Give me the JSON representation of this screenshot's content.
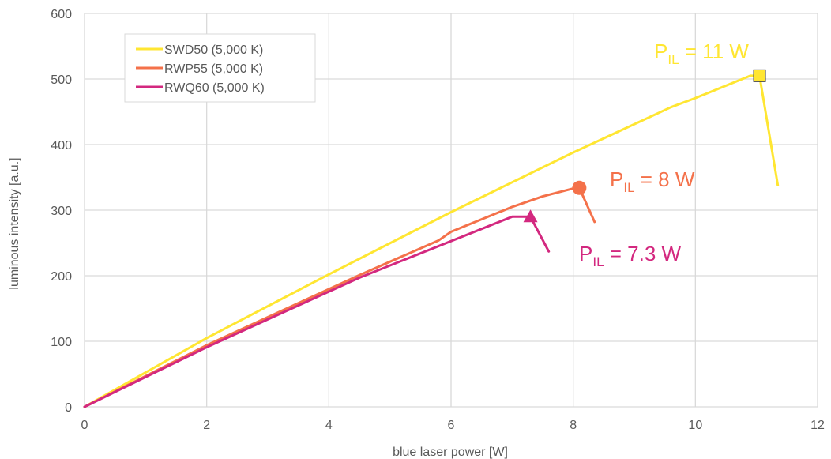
{
  "chart_data": {
    "type": "line",
    "title": "",
    "xlabel": "blue laser power [W]",
    "ylabel": "luminous intensity [a.u.]",
    "xlim": [
      0,
      12
    ],
    "ylim": [
      0,
      600
    ],
    "xticks": [
      0,
      2,
      4,
      6,
      8,
      10,
      12
    ],
    "yticks": [
      0,
      100,
      200,
      300,
      400,
      500,
      600
    ],
    "grid": true,
    "legend_position": "top-left",
    "series": [
      {
        "name": "SWD50 (5,000 K)",
        "color": "#ffe632",
        "marker": "square",
        "x": [
          0,
          2,
          4,
          6,
          8,
          9.6,
          10,
          10.9,
          11.05,
          11.35
        ],
        "y": [
          0,
          105,
          202,
          297,
          388,
          457,
          471,
          505,
          505,
          338
        ]
      },
      {
        "name": "RWP55 (5,000 K)",
        "color": "#f4714a",
        "marker": "circle",
        "x": [
          0,
          2,
          4.5,
          5.8,
          6,
          7,
          7.5,
          8,
          8.1,
          8.35
        ],
        "y": [
          0,
          94,
          201,
          254,
          267,
          305,
          321,
          333,
          334,
          282
        ]
      },
      {
        "name": "RWQ60 (5,000 K)",
        "color": "#d3287f",
        "marker": "triangle",
        "x": [
          0,
          2,
          4.5,
          7,
          7.3,
          7.3,
          7.6
        ],
        "y": [
          0,
          91,
          197,
          290,
          290,
          290,
          237
        ]
      }
    ],
    "annotations": [
      {
        "base": "P",
        "sub": "IL",
        "rest": " = 11 W",
        "color": "#ffe632"
      },
      {
        "base": "P",
        "sub": "IL",
        "rest": " = 8 W",
        "color": "#f4714a"
      },
      {
        "base": "P",
        "sub": "IL",
        "rest": " = 7.3 W",
        "color": "#d3287f"
      }
    ]
  }
}
